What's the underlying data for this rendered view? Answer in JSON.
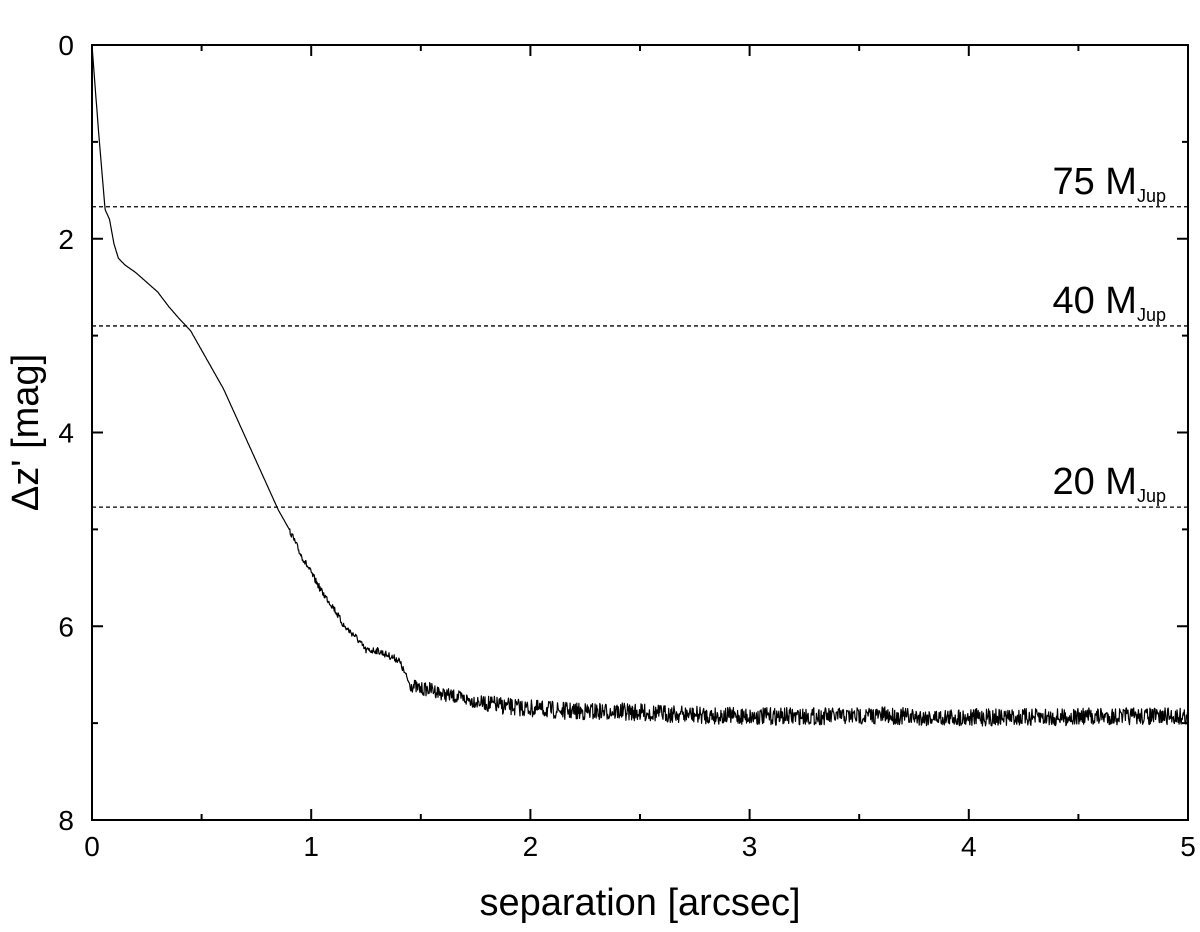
{
  "chart_data": {
    "type": "line",
    "xlabel": "separation [arcsec]",
    "ylabel": "Δz' [mag]",
    "xlim": [
      0,
      5
    ],
    "ylim": [
      0,
      8
    ],
    "y_inverted": true,
    "grid": false,
    "xticks": [
      {
        "value": 0,
        "label": "0"
      },
      {
        "value": 1,
        "label": "1"
      },
      {
        "value": 2,
        "label": "2"
      },
      {
        "value": 3,
        "label": "3"
      },
      {
        "value": 4,
        "label": "4"
      },
      {
        "value": 5,
        "label": "5"
      }
    ],
    "yticks": [
      {
        "value": 0,
        "label": "0"
      },
      {
        "value": 2,
        "label": "2"
      },
      {
        "value": 4,
        "label": "4"
      },
      {
        "value": 6,
        "label": "6"
      },
      {
        "value": 8,
        "label": "8"
      }
    ],
    "series": [
      {
        "x": [
          0,
          0.03,
          0.06,
          0.08,
          0.1,
          0.12,
          0.15,
          0.2,
          0.25,
          0.3,
          0.35,
          0.4,
          0.45,
          0.5,
          0.55,
          0.6,
          0.65,
          0.7,
          0.75,
          0.8,
          0.85,
          0.9,
          0.95,
          1.0,
          1.05,
          1.1,
          1.15,
          1.2,
          1.25,
          1.3,
          1.35,
          1.4,
          1.45,
          1.5,
          1.55,
          1.6,
          1.7,
          1.8,
          1.9,
          2.0,
          2.2,
          2.4,
          2.6,
          2.8,
          3.0,
          3.2,
          3.4,
          3.6,
          3.8,
          4.0,
          4.2,
          4.4,
          4.6,
          4.8,
          5.0
        ],
        "y": [
          0,
          0.9,
          1.7,
          1.8,
          2.05,
          2.2,
          2.27,
          2.35,
          2.45,
          2.55,
          2.7,
          2.83,
          2.95,
          3.15,
          3.35,
          3.55,
          3.8,
          4.05,
          4.3,
          4.55,
          4.8,
          5.0,
          5.25,
          5.45,
          5.65,
          5.8,
          6.0,
          6.1,
          6.25,
          6.25,
          6.3,
          6.35,
          6.6,
          6.65,
          6.65,
          6.7,
          6.75,
          6.8,
          6.83,
          6.85,
          6.88,
          6.88,
          6.9,
          6.92,
          6.93,
          6.93,
          6.93,
          6.92,
          6.94,
          6.94,
          6.94,
          6.94,
          6.93,
          6.93,
          6.93
        ]
      }
    ],
    "reference_lines": [
      {
        "y": 1.67,
        "label": "75 M",
        "subscript": "Jup"
      },
      {
        "y": 2.9,
        "label": "40 M",
        "subscript": "Jup"
      },
      {
        "y": 4.77,
        "label": "20 M",
        "subscript": "Jup"
      }
    ]
  }
}
